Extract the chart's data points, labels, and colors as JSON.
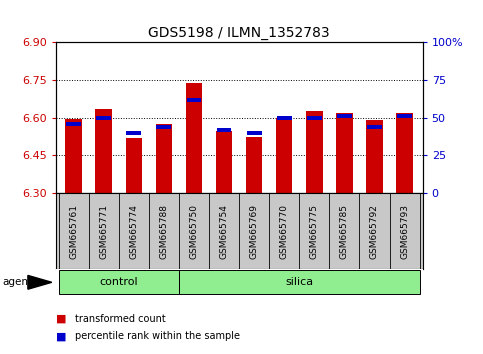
{
  "title": "GDS5198 / ILMN_1352783",
  "samples": [
    "GSM665761",
    "GSM665771",
    "GSM665774",
    "GSM665788",
    "GSM665750",
    "GSM665754",
    "GSM665769",
    "GSM665770",
    "GSM665775",
    "GSM665785",
    "GSM665792",
    "GSM665793"
  ],
  "groups": [
    "control",
    "control",
    "control",
    "control",
    "silica",
    "silica",
    "silica",
    "silica",
    "silica",
    "silica",
    "silica",
    "silica"
  ],
  "transformed_count": [
    6.595,
    6.635,
    6.52,
    6.575,
    6.74,
    6.545,
    6.525,
    6.6,
    6.625,
    6.618,
    6.59,
    6.618
  ],
  "percentile_rank": [
    46,
    50,
    40,
    44,
    62,
    42,
    40,
    50,
    50,
    51,
    44,
    51
  ],
  "ylim_left": [
    6.3,
    6.9
  ],
  "ylim_right": [
    0,
    100
  ],
  "yticks_left": [
    6.3,
    6.45,
    6.6,
    6.75,
    6.9
  ],
  "yticks_right": [
    0,
    25,
    50,
    75,
    100
  ],
  "bar_color": "#cc0000",
  "percentile_color": "#0000cc",
  "group_color": "#90ee90",
  "xtick_bg_color": "#c8c8c8",
  "bar_width": 0.55,
  "base_value": 6.3,
  "background_color": "#ffffff",
  "title_fontsize": 10,
  "tick_fontsize": 8,
  "sample_fontsize": 6.5,
  "group_fontsize": 8
}
